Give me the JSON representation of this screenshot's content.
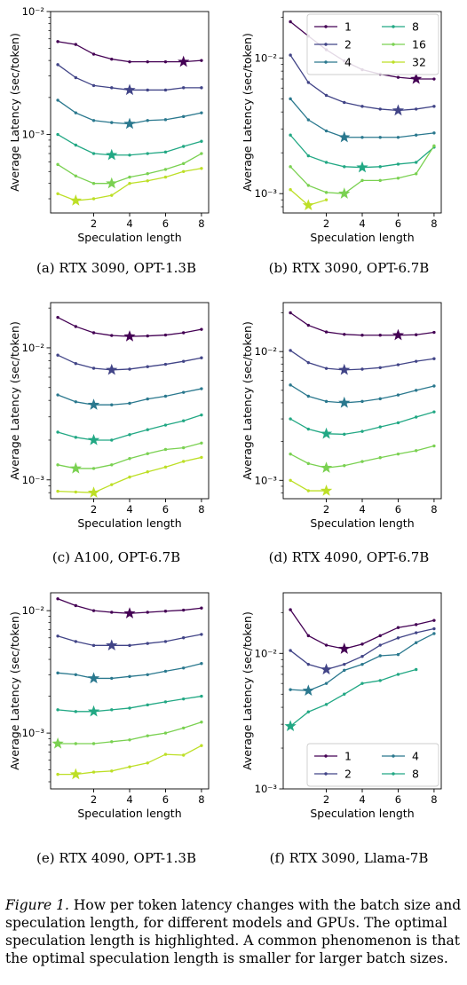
{
  "caption": {
    "label": "Figure 1.",
    "text": " How per token latency changes with the batch size and speculation length, for different models and GPUs. The optimal speculation length is highlighted. A common phenomenon is that the optimal speculation length is smaller for larger batch sizes."
  },
  "colors": {
    "1": "#440154",
    "2": "#414487",
    "4": "#2a788e",
    "8": "#22a884",
    "16": "#7ad151",
    "32": "#bddf26"
  },
  "chart_data": [
    {
      "type": "line",
      "caption": "(a) RTX 3090, OPT-1.3B",
      "xlabel": "Speculation length",
      "ylabel": "Average Latency (sec/token)",
      "yscale": "log",
      "ylim": [
        0.00023,
        0.01
      ],
      "xticks": [
        "2",
        "4",
        "6",
        "8"
      ],
      "yticks": [
        {
          "value": 0.01,
          "label": "10⁻²"
        },
        {
          "value": 0.001,
          "label": "10⁻³"
        }
      ],
      "legend": null,
      "series": [
        {
          "name": "1",
          "x": [
            0,
            1,
            2,
            3,
            4,
            5,
            6,
            7,
            8
          ],
          "y": [
            0.0057,
            0.0054,
            0.0045,
            0.0041,
            0.0039,
            0.0039,
            0.0039,
            0.0039,
            0.004
          ],
          "best_x": 7
        },
        {
          "name": "2",
          "x": [
            0,
            1,
            2,
            3,
            4,
            5,
            6,
            7,
            8
          ],
          "y": [
            0.0037,
            0.0029,
            0.0025,
            0.0024,
            0.0023,
            0.0023,
            0.0023,
            0.0024,
            0.0024
          ],
          "best_x": 4
        },
        {
          "name": "4",
          "x": [
            0,
            1,
            2,
            3,
            4,
            5,
            6,
            7,
            8
          ],
          "y": [
            0.0019,
            0.0015,
            0.0013,
            0.00125,
            0.00122,
            0.0013,
            0.00132,
            0.0014,
            0.0015
          ],
          "best_x": 4
        },
        {
          "name": "8",
          "x": [
            0,
            1,
            2,
            3,
            4,
            5,
            6,
            7,
            8
          ],
          "y": [
            0.001,
            0.00082,
            0.0007,
            0.00068,
            0.00068,
            0.0007,
            0.00072,
            0.0008,
            0.00088
          ],
          "best_x": 3
        },
        {
          "name": "16",
          "x": [
            0,
            1,
            2,
            3,
            4,
            5,
            6,
            7,
            8
          ],
          "y": [
            0.00057,
            0.00046,
            0.0004,
            0.0004,
            0.00045,
            0.00048,
            0.00052,
            0.00058,
            0.0007
          ],
          "best_x": 3
        },
        {
          "name": "32",
          "x": [
            0,
            1,
            2,
            3,
            4,
            5,
            6,
            7,
            8
          ],
          "y": [
            0.00033,
            0.00029,
            0.0003,
            0.00032,
            0.0004,
            0.00042,
            0.00045,
            0.0005,
            0.00053
          ],
          "best_x": 1
        }
      ]
    },
    {
      "type": "line",
      "caption": "(b) RTX 3090, OPT-6.7B",
      "xlabel": "Speculation length",
      "ylabel": "Average Latency (sec/token)",
      "yscale": "log",
      "ylim": [
        0.00072,
        0.022
      ],
      "xticks": [
        "2",
        "4",
        "6",
        "8"
      ],
      "yticks": [
        {
          "value": 0.01,
          "label": "10⁻²"
        },
        {
          "value": 0.001,
          "label": "10⁻³"
        }
      ],
      "legend": {
        "placement": "top-right",
        "columns": 2
      },
      "series": [
        {
          "name": "1",
          "x": [
            0,
            1,
            2,
            3,
            4,
            5,
            6,
            7,
            8
          ],
          "y": [
            0.0185,
            0.0145,
            0.0115,
            0.0095,
            0.0082,
            0.0076,
            0.0072,
            0.007,
            0.007
          ],
          "best_x": 7
        },
        {
          "name": "2",
          "x": [
            0,
            1,
            2,
            3,
            4,
            5,
            6,
            7,
            8
          ],
          "y": [
            0.0105,
            0.0066,
            0.0053,
            0.0047,
            0.0044,
            0.0042,
            0.0041,
            0.0042,
            0.0044
          ],
          "best_x": 6
        },
        {
          "name": "4",
          "x": [
            0,
            1,
            2,
            3,
            4,
            5,
            6,
            7,
            8
          ],
          "y": [
            0.005,
            0.0035,
            0.0029,
            0.0026,
            0.0026,
            0.0026,
            0.0026,
            0.0027,
            0.0028
          ],
          "best_x": 3
        },
        {
          "name": "8",
          "x": [
            0,
            1,
            2,
            3,
            4,
            5,
            6,
            7,
            8
          ],
          "y": [
            0.0027,
            0.0019,
            0.0017,
            0.00158,
            0.00156,
            0.00158,
            0.00165,
            0.0017,
            0.0022
          ],
          "best_x": 4
        },
        {
          "name": "16",
          "x": [
            0,
            1,
            2,
            3,
            4,
            5,
            6,
            7,
            8
          ],
          "y": [
            0.00158,
            0.00115,
            0.00102,
            0.001,
            0.00125,
            0.00125,
            0.0013,
            0.0014,
            0.00225
          ],
          "best_x": 3
        },
        {
          "name": "32",
          "x": [
            0,
            1,
            2
          ],
          "y": [
            0.00107,
            0.00082,
            0.0009
          ],
          "best_x": 1
        }
      ]
    },
    {
      "type": "line",
      "caption": "(c) A100, OPT-6.7B",
      "xlabel": "Speculation length",
      "ylabel": "Average Latency (sec/token)",
      "yscale": "log",
      "ylim": [
        0.00072,
        0.022
      ],
      "xticks": [
        "2",
        "4",
        "6",
        "8"
      ],
      "yticks": [
        {
          "value": 0.01,
          "label": "10⁻²"
        },
        {
          "value": 0.001,
          "label": "10⁻³"
        }
      ],
      "legend": null,
      "series": [
        {
          "name": "1",
          "x": [
            0,
            1,
            2,
            3,
            4,
            5,
            6,
            7,
            8
          ],
          "y": [
            0.017,
            0.0145,
            0.013,
            0.0124,
            0.0122,
            0.0123,
            0.0125,
            0.013,
            0.0138
          ],
          "best_x": 4
        },
        {
          "name": "2",
          "x": [
            0,
            1,
            2,
            3,
            4,
            5,
            6,
            7,
            8
          ],
          "y": [
            0.0088,
            0.0076,
            0.007,
            0.0068,
            0.0069,
            0.0072,
            0.0075,
            0.0079,
            0.0084
          ],
          "best_x": 3
        },
        {
          "name": "4",
          "x": [
            0,
            1,
            2,
            3,
            4,
            5,
            6,
            7,
            8
          ],
          "y": [
            0.0044,
            0.0039,
            0.0037,
            0.0037,
            0.0038,
            0.0041,
            0.0043,
            0.0046,
            0.0049
          ],
          "best_x": 2
        },
        {
          "name": "8",
          "x": [
            0,
            1,
            2,
            3,
            4,
            5,
            6,
            7,
            8
          ],
          "y": [
            0.0023,
            0.0021,
            0.002,
            0.002,
            0.0022,
            0.0024,
            0.0026,
            0.0028,
            0.0031
          ],
          "best_x": 2
        },
        {
          "name": "16",
          "x": [
            0,
            1,
            2,
            3,
            4,
            5,
            6,
            7,
            8
          ],
          "y": [
            0.0013,
            0.00122,
            0.00122,
            0.0013,
            0.00145,
            0.00158,
            0.0017,
            0.00175,
            0.0019
          ],
          "best_x": 1
        },
        {
          "name": "32",
          "x": [
            0,
            1,
            2,
            3,
            4,
            5,
            6,
            7,
            8
          ],
          "y": [
            0.00082,
            0.00081,
            0.0008,
            0.00092,
            0.00105,
            0.00115,
            0.00125,
            0.00138,
            0.00148
          ],
          "best_x": 2
        }
      ]
    },
    {
      "type": "line",
      "caption": "(d) RTX 4090, OPT-6.7B",
      "xlabel": "Speculation length",
      "ylabel": "Average Latency (sec/token)",
      "yscale": "log",
      "ylim": [
        0.00072,
        0.024
      ],
      "xticks": [
        "2",
        "4",
        "6",
        "8"
      ],
      "yticks": [
        {
          "value": 0.01,
          "label": "10⁻²"
        },
        {
          "value": 0.001,
          "label": "10⁻³"
        }
      ],
      "legend": null,
      "series": [
        {
          "name": "1",
          "x": [
            0,
            1,
            2,
            3,
            4,
            5,
            6,
            7,
            8
          ],
          "y": [
            0.02,
            0.016,
            0.0142,
            0.0136,
            0.0134,
            0.0134,
            0.0134,
            0.0135,
            0.0141
          ],
          "best_x": 6
        },
        {
          "name": "2",
          "x": [
            0,
            1,
            2,
            3,
            4,
            5,
            6,
            7,
            8
          ],
          "y": [
            0.0102,
            0.0082,
            0.0074,
            0.0072,
            0.0073,
            0.0075,
            0.0079,
            0.0084,
            0.0088
          ],
          "best_x": 3
        },
        {
          "name": "4",
          "x": [
            0,
            1,
            2,
            3,
            4,
            5,
            6,
            7,
            8
          ],
          "y": [
            0.0055,
            0.0045,
            0.0041,
            0.004,
            0.0041,
            0.0043,
            0.0046,
            0.005,
            0.0054
          ],
          "best_x": 3
        },
        {
          "name": "8",
          "x": [
            0,
            1,
            2,
            3,
            4,
            5,
            6,
            7,
            8
          ],
          "y": [
            0.003,
            0.0025,
            0.0023,
            0.00228,
            0.0024,
            0.0026,
            0.0028,
            0.0031,
            0.0034
          ],
          "best_x": 2
        },
        {
          "name": "16",
          "x": [
            0,
            1,
            2,
            3,
            4,
            5,
            6,
            7,
            8
          ],
          "y": [
            0.0016,
            0.00135,
            0.00125,
            0.0013,
            0.0014,
            0.0015,
            0.0016,
            0.0017,
            0.00185
          ],
          "best_x": 2
        },
        {
          "name": "32",
          "x": [
            0,
            1,
            2
          ],
          "y": [
            0.001,
            0.00083,
            0.00083
          ],
          "best_x": 2
        }
      ]
    },
    {
      "type": "line",
      "caption": "(e) RTX 4090, OPT-1.3B",
      "xlabel": "Speculation length",
      "ylabel": "Average Latency (sec/token)",
      "yscale": "log",
      "ylim": [
        0.00035,
        0.014
      ],
      "xticks": [
        "2",
        "4",
        "6",
        "8"
      ],
      "yticks": [
        {
          "value": 0.01,
          "label": "10⁻²"
        },
        {
          "value": 0.001,
          "label": "10⁻³"
        }
      ],
      "legend": null,
      "series": [
        {
          "name": "1",
          "x": [
            0,
            1,
            2,
            3,
            4,
            5,
            6,
            7,
            8
          ],
          "y": [
            0.0125,
            0.011,
            0.01,
            0.0097,
            0.0095,
            0.0097,
            0.0099,
            0.0101,
            0.0105
          ],
          "best_x": 4
        },
        {
          "name": "2",
          "x": [
            0,
            1,
            2,
            3,
            4,
            5,
            6,
            7,
            8
          ],
          "y": [
            0.0062,
            0.0056,
            0.0052,
            0.0052,
            0.0052,
            0.0054,
            0.0056,
            0.006,
            0.0064
          ],
          "best_x": 3
        },
        {
          "name": "4",
          "x": [
            0,
            1,
            2,
            3,
            4,
            5,
            6,
            7,
            8
          ],
          "y": [
            0.0031,
            0.003,
            0.0028,
            0.0028,
            0.0029,
            0.003,
            0.0032,
            0.0034,
            0.0037
          ],
          "best_x": 2
        },
        {
          "name": "8",
          "x": [
            0,
            1,
            2,
            3,
            4,
            5,
            6,
            7,
            8
          ],
          "y": [
            0.00155,
            0.0015,
            0.0015,
            0.00155,
            0.0016,
            0.0017,
            0.0018,
            0.0019,
            0.002
          ],
          "best_x": 2
        },
        {
          "name": "16",
          "x": [
            0,
            1,
            2,
            3,
            4,
            5,
            6,
            7,
            8
          ],
          "y": [
            0.00082,
            0.00082,
            0.00082,
            0.00085,
            0.00088,
            0.00095,
            0.001,
            0.0011,
            0.00123
          ],
          "best_x": 0
        },
        {
          "name": "32",
          "x": [
            0,
            1,
            2,
            3,
            4,
            5,
            6,
            7,
            8
          ],
          "y": [
            0.00046,
            0.00046,
            0.00048,
            0.00049,
            0.00053,
            0.00057,
            0.00067,
            0.00066,
            0.00079
          ],
          "best_x": 1
        }
      ]
    },
    {
      "type": "line",
      "caption": "(f) RTX 3090, Llama-7B",
      "xlabel": "Speculation length",
      "ylabel": "Average Latency (sec/token)",
      "yscale": "log",
      "ylim": [
        0.001,
        0.028
      ],
      "xticks": [
        "2",
        "4",
        "6",
        "8"
      ],
      "yticks": [
        {
          "value": 0.01,
          "label": "10⁻²"
        },
        {
          "value": 0.001,
          "label": "10⁻³"
        }
      ],
      "legend": {
        "placement": "lower-right",
        "columns": 2
      },
      "series": [
        {
          "name": "1",
          "x": [
            0,
            1,
            2,
            3,
            4,
            5,
            6,
            7,
            8
          ],
          "y": [
            0.021,
            0.0135,
            0.0115,
            0.0108,
            0.0117,
            0.0135,
            0.0155,
            0.0163,
            0.0175
          ],
          "best_x": 3
        },
        {
          "name": "2",
          "x": [
            0,
            1,
            2,
            3,
            4,
            5,
            6,
            7,
            8
          ],
          "y": [
            0.0105,
            0.0083,
            0.0076,
            0.0083,
            0.0095,
            0.0115,
            0.013,
            0.0142,
            0.0152
          ],
          "best_x": 2
        },
        {
          "name": "4",
          "x": [
            0,
            1,
            2,
            3,
            4,
            5,
            6,
            7,
            8
          ],
          "y": [
            0.0054,
            0.0053,
            0.006,
            0.0075,
            0.0083,
            0.0096,
            0.0098,
            0.012,
            0.014
          ],
          "best_x": 1
        },
        {
          "name": "8",
          "x": [
            0,
            1,
            2,
            3,
            4,
            5,
            6,
            7
          ],
          "y": [
            0.0029,
            0.0037,
            0.0042,
            0.005,
            0.006,
            0.0063,
            0.007,
            0.0076
          ],
          "best_x": 0
        }
      ]
    }
  ]
}
